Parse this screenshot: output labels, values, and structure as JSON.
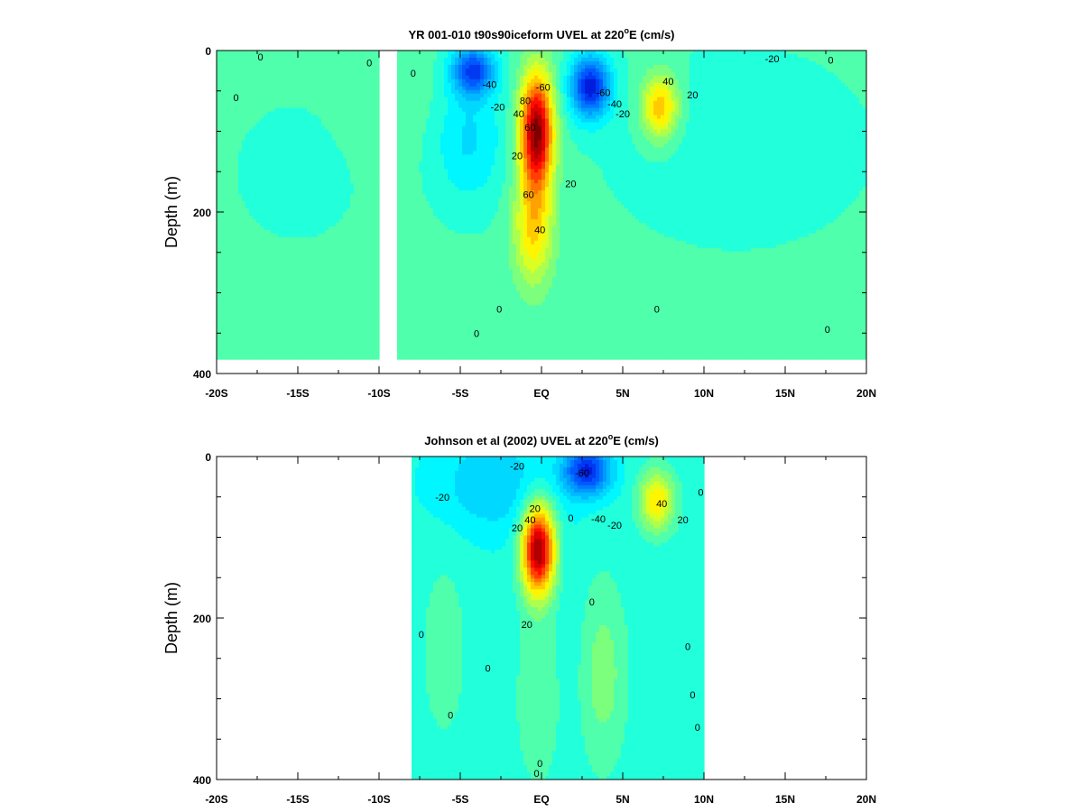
{
  "chart_data": [
    {
      "type": "heatmap",
      "subtype": "filled-contour",
      "title": {
        "main": "YR 001-010 t90s90iceform UVEL at 220",
        "sup": "o",
        "end": "E (cm/s)"
      },
      "xlabel": "",
      "ylabel": "Depth (m)",
      "x_ticks": [
        "-20S",
        "-15S",
        "-10S",
        "-5S",
        "EQ",
        "5N",
        "10N",
        "15N",
        "20N"
      ],
      "x_tick_values": [
        -20,
        -15,
        -10,
        -5,
        0,
        5,
        10,
        15,
        20
      ],
      "y_ticks": [
        "0",
        "200",
        "400"
      ],
      "y_tick_values": [
        0,
        200,
        400
      ],
      "xlim": [
        -20,
        20
      ],
      "ylim": [
        400,
        0
      ],
      "colormap": [
        "#0000c8",
        "#0050ff",
        "#00aaff",
        "#00ffff",
        "#7cff7c",
        "#ffff00",
        "#ff8c00",
        "#ff0000",
        "#800000"
      ],
      "color_range": [
        -80,
        100
      ],
      "background_value": 0,
      "data_extent": {
        "depth_max": 380
      },
      "missing_bands": [
        {
          "x0": -10.1,
          "x1": -8.9
        }
      ],
      "features": [
        {
          "lat": -0.3,
          "depth": 100,
          "lat_width": 1.0,
          "depth_width": 70,
          "value": 100
        },
        {
          "lat": -0.5,
          "depth": 220,
          "lat_width": 1.2,
          "depth_width": 70,
          "value": 40
        },
        {
          "lat": 7.3,
          "depth": 70,
          "lat_width": 1.1,
          "depth_width": 40,
          "value": 48
        },
        {
          "lat": -4.2,
          "depth": 25,
          "lat_width": 1.3,
          "depth_width": 30,
          "value": -60
        },
        {
          "lat": 3.0,
          "depth": 45,
          "lat_width": 1.2,
          "depth_width": 38,
          "value": -72
        },
        {
          "lat": -4.5,
          "depth": 110,
          "lat_width": 2.2,
          "depth_width": 80,
          "value": -20
        },
        {
          "lat": 12.0,
          "depth": 120,
          "lat_width": 8.0,
          "depth_width": 120,
          "value": -7
        },
        {
          "lat": -15.0,
          "depth": 150,
          "lat_width": 5.0,
          "depth_width": 110,
          "value": -4
        },
        {
          "lat": -9.0,
          "depth": 60,
          "lat_width": 3.0,
          "depth_width": 70,
          "value": 5
        },
        {
          "lat": -5.0,
          "depth": 350,
          "lat_width": 1.0,
          "depth_width": 40,
          "value": 5
        },
        {
          "lat": 17.0,
          "depth": 360,
          "lat_width": 2.0,
          "depth_width": 40,
          "value": 5
        }
      ],
      "contour_labels": [
        {
          "text": "0",
          "lat": -17.3,
          "depth": 8
        },
        {
          "text": "0",
          "lat": -18.8,
          "depth": 58
        },
        {
          "text": "0",
          "lat": -10.6,
          "depth": 15
        },
        {
          "text": "0",
          "lat": -7.9,
          "depth": 28
        },
        {
          "text": "-40",
          "lat": -3.2,
          "depth": 42
        },
        {
          "text": "-20",
          "lat": -2.7,
          "depth": 70
        },
        {
          "text": "-60",
          "lat": 0.1,
          "depth": 45
        },
        {
          "text": "80",
          "lat": -1.0,
          "depth": 62
        },
        {
          "text": "40",
          "lat": -1.4,
          "depth": 78
        },
        {
          "text": "20",
          "lat": -1.5,
          "depth": 130
        },
        {
          "text": "60",
          "lat": -0.7,
          "depth": 95
        },
        {
          "text": "60",
          "lat": -0.8,
          "depth": 178
        },
        {
          "text": "40",
          "lat": -0.1,
          "depth": 222
        },
        {
          "text": "20",
          "lat": 1.8,
          "depth": 165
        },
        {
          "text": "-60",
          "lat": 3.8,
          "depth": 52
        },
        {
          "text": "-40",
          "lat": 4.5,
          "depth": 66
        },
        {
          "text": "-20",
          "lat": 5.0,
          "depth": 78
        },
        {
          "text": "40",
          "lat": 7.8,
          "depth": 38
        },
        {
          "text": "20",
          "lat": 9.3,
          "depth": 55
        },
        {
          "text": "-20",
          "lat": 14.2,
          "depth": 10
        },
        {
          "text": "0",
          "lat": 17.8,
          "depth": 12
        },
        {
          "text": "0",
          "lat": -2.6,
          "depth": 320
        },
        {
          "text": "0",
          "lat": 7.1,
          "depth": 320
        },
        {
          "text": "0",
          "lat": -4.0,
          "depth": 350
        },
        {
          "text": "0",
          "lat": 17.6,
          "depth": 345
        }
      ]
    },
    {
      "type": "heatmap",
      "subtype": "filled-contour",
      "title": {
        "main": "Johnson et al (2002) UVEL at 220",
        "sup": "o",
        "end": "E (cm/s)"
      },
      "xlabel": "",
      "ylabel": "Depth (m)",
      "x_ticks": [
        "-20S",
        "-15S",
        "-10S",
        "-5S",
        "EQ",
        "5N",
        "10N",
        "15N",
        "20N"
      ],
      "x_tick_values": [
        -20,
        -15,
        -10,
        -5,
        0,
        5,
        10,
        15,
        20
      ],
      "y_ticks": [
        "0",
        "200",
        "400"
      ],
      "y_tick_values": [
        0,
        200,
        400
      ],
      "xlim": [
        -20,
        20
      ],
      "ylim": [
        400,
        0
      ],
      "colormap": [
        "#0000c8",
        "#0050ff",
        "#00aaff",
        "#00ffff",
        "#7cff7c",
        "#ffff00",
        "#ff8c00",
        "#ff0000",
        "#800000"
      ],
      "color_range": [
        -80,
        100
      ],
      "background_value": -8,
      "data_extent": {
        "lat_min": -8,
        "lat_max": 10
      },
      "features": [
        {
          "lat": -0.2,
          "depth": 115,
          "lat_width": 1.0,
          "depth_width": 55,
          "value": 105
        },
        {
          "lat": 7.1,
          "depth": 55,
          "lat_width": 1.1,
          "depth_width": 38,
          "value": 45
        },
        {
          "lat": 2.8,
          "depth": 18,
          "lat_width": 1.4,
          "depth_width": 30,
          "value": -62
        },
        {
          "lat": -3.0,
          "depth": 35,
          "lat_width": 3.5,
          "depth_width": 60,
          "value": -18
        },
        {
          "lat": 3.8,
          "depth": 270,
          "lat_width": 1.5,
          "depth_width": 120,
          "value": 18
        },
        {
          "lat": -0.2,
          "depth": 300,
          "lat_width": 1.5,
          "depth_width": 120,
          "value": 12
        },
        {
          "lat": -6.0,
          "depth": 240,
          "lat_width": 1.6,
          "depth_width": 130,
          "value": 10
        },
        {
          "lat": 9.3,
          "depth": 260,
          "lat_width": 1.0,
          "depth_width": 150,
          "value": 5
        },
        {
          "lat": 1.8,
          "depth": 200,
          "lat_width": 0.8,
          "depth_width": 180,
          "value": -3
        }
      ],
      "contour_labels": [
        {
          "text": "-20",
          "lat": -1.5,
          "depth": 12
        },
        {
          "text": "-60",
          "lat": 2.5,
          "depth": 20
        },
        {
          "text": "-20",
          "lat": -6.1,
          "depth": 50
        },
        {
          "text": "20",
          "lat": -0.4,
          "depth": 64
        },
        {
          "text": "40",
          "lat": -0.7,
          "depth": 78
        },
        {
          "text": "20",
          "lat": -1.5,
          "depth": 88
        },
        {
          "text": "0",
          "lat": 1.8,
          "depth": 76
        },
        {
          "text": "-40",
          "lat": 3.5,
          "depth": 77
        },
        {
          "text": "-20",
          "lat": 4.5,
          "depth": 85
        },
        {
          "text": "40",
          "lat": 7.4,
          "depth": 58
        },
        {
          "text": "20",
          "lat": 8.7,
          "depth": 78
        },
        {
          "text": "0",
          "lat": 9.8,
          "depth": 44
        },
        {
          "text": "0",
          "lat": 3.1,
          "depth": 180
        },
        {
          "text": "20",
          "lat": -0.9,
          "depth": 208
        },
        {
          "text": "0",
          "lat": -7.4,
          "depth": 220
        },
        {
          "text": "0",
          "lat": -3.3,
          "depth": 262
        },
        {
          "text": "0",
          "lat": 9.0,
          "depth": 235
        },
        {
          "text": "0",
          "lat": 9.3,
          "depth": 295
        },
        {
          "text": "0",
          "lat": -5.6,
          "depth": 320
        },
        {
          "text": "0",
          "lat": 9.6,
          "depth": 335
        },
        {
          "text": "0",
          "lat": -0.1,
          "depth": 380
        },
        {
          "text": "0",
          "lat": -0.3,
          "depth": 392
        }
      ]
    }
  ]
}
